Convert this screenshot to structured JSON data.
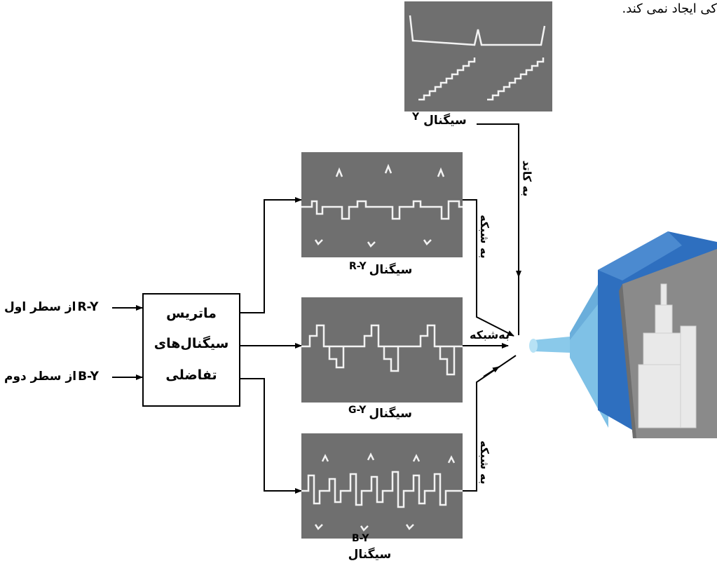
{
  "top_text": "کی ایجاد نمی کند.",
  "inputs": {
    "ry": {
      "code": "R-Y",
      "text": "از سطر اول"
    },
    "by": {
      "code": "B-Y",
      "text": "از سطر دوم"
    }
  },
  "matrix_box": {
    "line1": "ماتریس",
    "line2": "سیگنال‌های",
    "line3": "تفاضلی"
  },
  "signals": {
    "y": {
      "word": "سیگنال",
      "code": "Y"
    },
    "ry": {
      "word": "سیگنال",
      "code": "R-Y"
    },
    "gy": {
      "word": "سیگنال",
      "code": "G-Y"
    },
    "by": {
      "word": "سیگنال",
      "code": "B-Y"
    }
  },
  "destinations": {
    "cathode": "به کاتد",
    "grid_top": "به شبکه",
    "grid_middle": "به‌شبکه",
    "grid_bottom": "به شبکه"
  },
  "colors": {
    "crt_front": "#2e6fbf",
    "crt_neck": "#8ac9ea",
    "crt_face": "#8a8a8a",
    "scope_bg": "#6f6f6f",
    "trace": "#f2f2f2"
  }
}
